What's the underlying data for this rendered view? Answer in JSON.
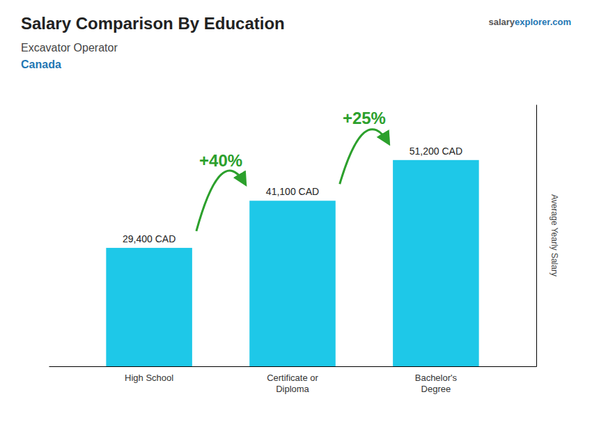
{
  "chart_data": {
    "type": "bar",
    "title": "Salary Comparison By Education",
    "subtitle": [
      "Excavator Operator",
      "Canada"
    ],
    "source": [
      "salary",
      "explorer.com"
    ],
    "ylabel": "Average Yearly Salary",
    "categories": [
      "High School",
      "Certificate or\nDiploma",
      "Bachelor's\nDegree"
    ],
    "values": [
      29400,
      41100,
      51200
    ],
    "value_labels": [
      "29,400 CAD",
      "41,100 CAD",
      "51,200 CAD"
    ],
    "data_labels": true,
    "annotations": [
      "+40%",
      "+25%"
    ],
    "color": "#1EC8E8",
    "ylim": [
      0,
      65000
    ],
    "tick_labels": "x",
    "grid": false
  }
}
